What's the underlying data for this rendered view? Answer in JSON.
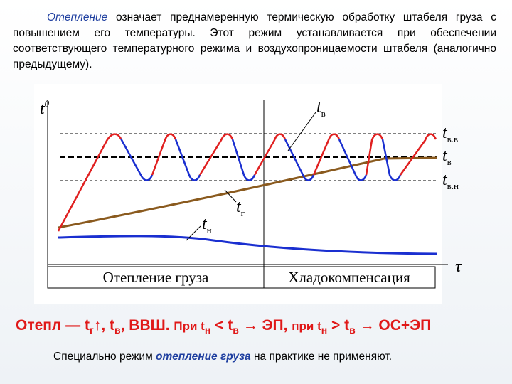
{
  "intro": {
    "term": "Отепление",
    "text": " означает преднамеренную термическую обработку штабеля груза с повышением его температуры. Этот режим устанавливается при обеспечении соответствующего температурного режима и воздухопроницаемости штабеля (аналогично предыдущему)."
  },
  "diagram": {
    "y_axis_label": "t",
    "y_axis_sup": "0",
    "x_axis_label": "τ",
    "curve_tv": {
      "t": "t",
      "sub": "в"
    },
    "curve_tg": {
      "t": "t",
      "sub": "г"
    },
    "curve_tn": {
      "t": "t",
      "sub": "н"
    },
    "level_vv": {
      "t": "t",
      "sub": "в.в"
    },
    "level_v": {
      "t": "t",
      "sub": "в"
    },
    "level_vn": {
      "t": "t",
      "sub": "в.н"
    },
    "phase_1": "Отепление груза",
    "phase_2": "Хладокомпенсация"
  },
  "formula": [
    "Отепл — t",
    "г",
    "↑, t",
    "в",
    ", ВВШ. ",
    "При t",
    "н",
    " < t",
    "в",
    " → ЭП, ",
    "при t",
    "н",
    " > t",
    "в",
    " → ОС+ЭП"
  ],
  "footer": {
    "before": "Специально режим ",
    "term": "отепление груза",
    "after": " на практике не применяют."
  }
}
